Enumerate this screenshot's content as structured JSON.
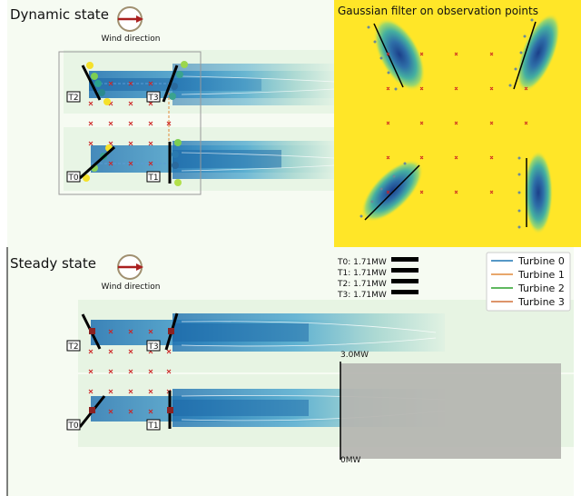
{
  "dynamic": {
    "title": "Dynamic state",
    "wind_direction_label": "Wind direction",
    "turbine_labels": [
      "T0",
      "T1",
      "T2",
      "T3"
    ]
  },
  "gaussian": {
    "title": "Gaussian filter on observation points"
  },
  "steady": {
    "title": "Steady state",
    "wind_direction_label": "Wind direction",
    "turbine_labels": [
      "T0",
      "T1",
      "T2",
      "T3"
    ],
    "power_readouts": [
      {
        "label": "T0: 1.71MW"
      },
      {
        "label": "T1: 1.71MW"
      },
      {
        "label": "T2: 1.71MW"
      },
      {
        "label": "T3: 1.71MW"
      }
    ],
    "axis_top": "3.0MW",
    "axis_bottom": "0MW"
  },
  "legend": {
    "items": [
      {
        "name": "Turbine 0",
        "color": "#1f77b4"
      },
      {
        "name": "Turbine 1",
        "color": "#e08a3c"
      },
      {
        "name": "Turbine 2",
        "color": "#2ca02c"
      },
      {
        "name": "Turbine 3",
        "color": "#d2703a"
      }
    ]
  },
  "colors": {
    "field_bg": "#f4fbf0",
    "wake_dark": "#2b7bba",
    "wake_light": "#a6d6c8",
    "gauss_bg": "#ffe628",
    "obs_marker": "#cc2222",
    "wind_arrow": "#aa1f1f"
  }
}
